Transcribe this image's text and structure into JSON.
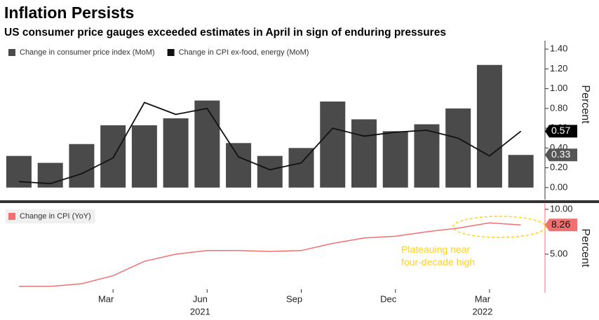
{
  "title": "Inflation Persists",
  "subtitle": "US consumer price gauges exceeded estimates in April in sign of enduring pressures",
  "chart_data": [
    {
      "type": "bar",
      "y_label": "Percent",
      "categories": [
        null,
        null,
        null,
        "Mar",
        null,
        null,
        "Jun",
        null,
        null,
        "Sep",
        null,
        null,
        "Dec",
        null,
        null,
        "Mar",
        null
      ],
      "x_group_labels": [
        "2021",
        "2022"
      ],
      "series": [
        {
          "name": "Change in consumer price index (MoM)",
          "type": "bar",
          "color": "#4a4a4a",
          "values": [
            0.32,
            0.25,
            0.44,
            0.63,
            0.63,
            0.7,
            0.88,
            0.45,
            0.32,
            0.4,
            0.87,
            0.69,
            0.57,
            0.64,
            0.8,
            1.24,
            0.33
          ]
        },
        {
          "name": "Change in CPI ex-food, energy (MoM)",
          "type": "line",
          "color": "#111111",
          "values": [
            0.06,
            0.04,
            0.14,
            0.3,
            0.86,
            0.74,
            0.8,
            0.31,
            0.18,
            0.25,
            0.6,
            0.52,
            0.56,
            0.58,
            0.5,
            0.32,
            0.57
          ]
        }
      ],
      "ylim": [
        -0.1,
        1.5
      ],
      "yticks": [
        {
          "value": 0,
          "label": "0.00"
        },
        {
          "value": 0.2,
          "label": "0.20"
        },
        {
          "value": 0.4,
          "label": "0.40"
        },
        {
          "value": 0.6,
          "label": "0.60"
        },
        {
          "value": 0.8,
          "label": "0.80"
        },
        {
          "value": 1.0,
          "label": "1.00"
        },
        {
          "value": 1.2,
          "label": "1.20"
        },
        {
          "value": 1.4,
          "label": "1.40"
        }
      ]
    },
    {
      "type": "line",
      "y_label": "Percent",
      "annotation": "Plateauing near four-decade high",
      "series": [
        {
          "name": "Change in CPI (YoY)",
          "color": "#f07070",
          "values": [
            1.4,
            1.4,
            1.7,
            2.6,
            4.2,
            5.0,
            5.4,
            5.4,
            5.3,
            5.4,
            6.2,
            6.8,
            7.0,
            7.5,
            7.9,
            8.5,
            8.26
          ]
        }
      ],
      "ylim": [
        0.7,
        10.7
      ],
      "yticks": [
        {
          "value": 5,
          "label": "5.00"
        },
        {
          "value": 10,
          "label": "10.00"
        }
      ]
    }
  ]
}
